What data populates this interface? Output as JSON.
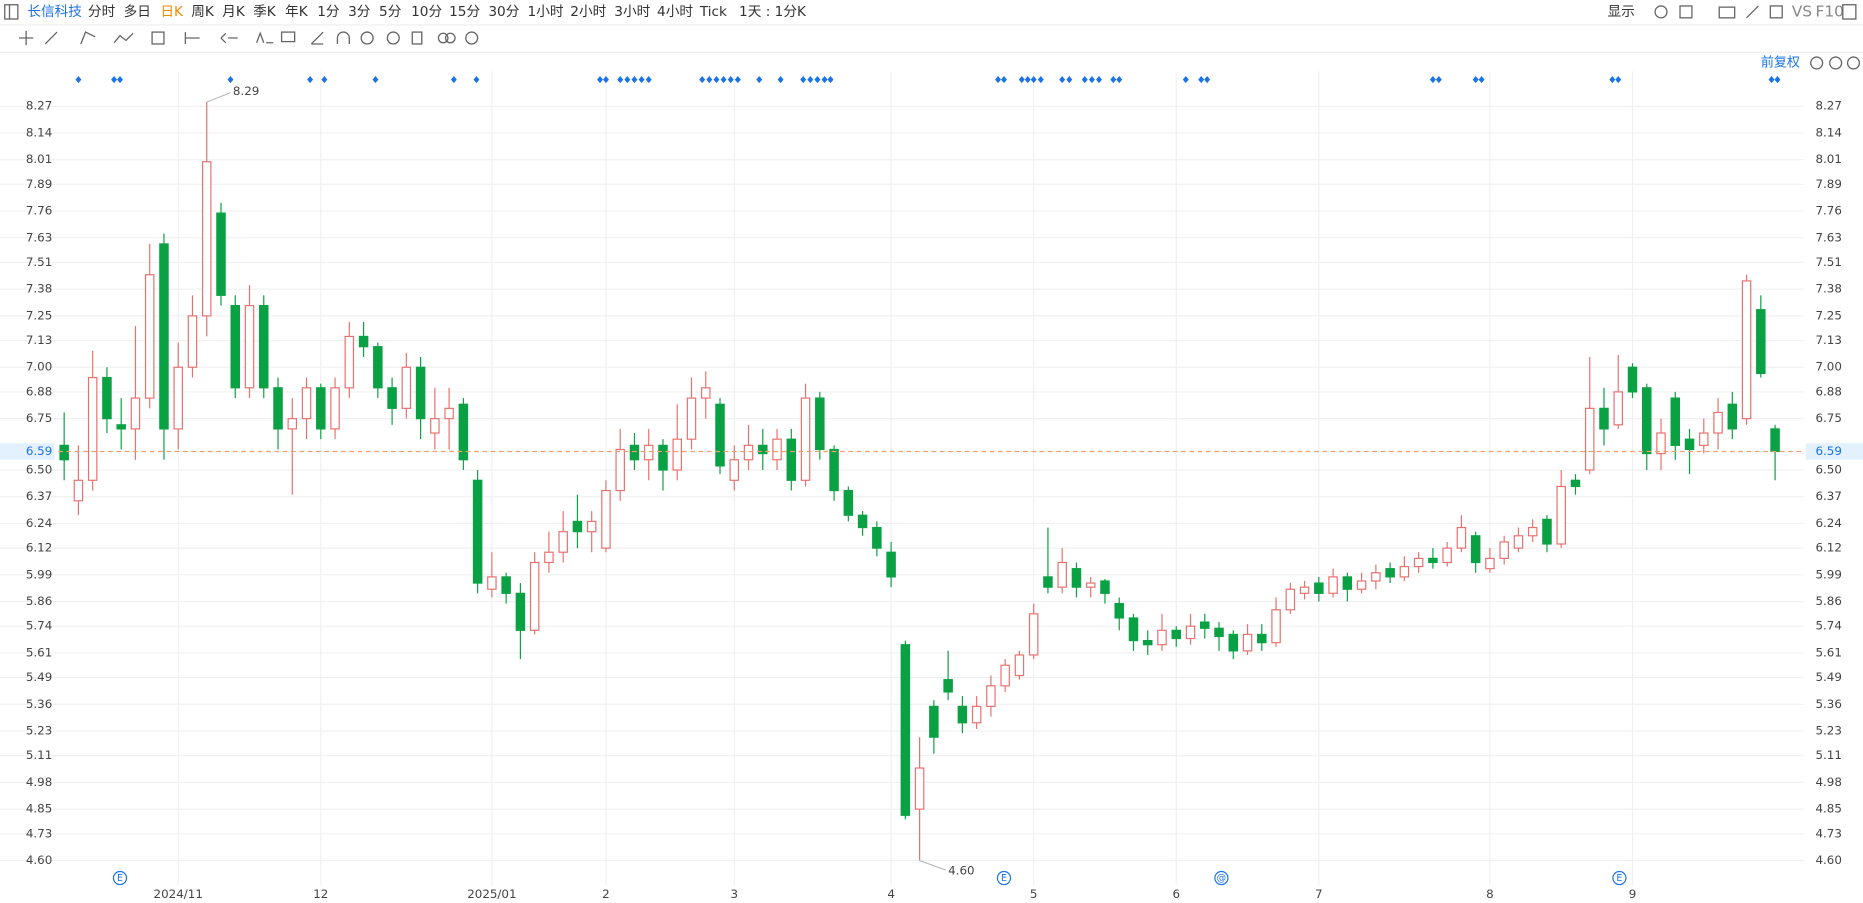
{
  "toolbar": {
    "symbol": "长信科技",
    "periods": [
      "分时",
      "多日",
      "日K",
      "周K",
      "月K",
      "季K",
      "年K",
      "1分",
      "3分",
      "5分",
      "10分",
      "15分",
      "30分",
      "1小时",
      "2小时",
      "3小时",
      "4小时",
      "Tick"
    ],
    "range": "1天 : 1分K",
    "display": "显示",
    "vs": "VS",
    "f10": "F10"
  },
  "chart_data": {
    "type": "candlestick",
    "adjust_label": "前复权",
    "categories": [
      null,
      null,
      null,
      null,
      null,
      null,
      null,
      null,
      "2024/11",
      null,
      null,
      null,
      null,
      null,
      null,
      null,
      null,
      null,
      "12",
      null,
      null,
      null,
      null,
      null,
      null,
      null,
      null,
      null,
      null,
      null,
      "2025/01",
      null,
      null,
      null,
      null,
      null,
      null,
      null,
      "2",
      null,
      null,
      null,
      null,
      null,
      null,
      null,
      null,
      "3",
      null,
      null,
      null,
      null,
      null,
      null,
      null,
      null,
      null,
      null,
      "4",
      null,
      null,
      null,
      null,
      null,
      null,
      null,
      null,
      null,
      "5",
      null,
      null,
      null,
      null,
      null,
      null,
      null,
      null,
      null,
      "6",
      null,
      null,
      null,
      null,
      null,
      null,
      null,
      null,
      null,
      "7",
      null,
      null,
      null,
      null,
      null,
      null,
      null,
      null,
      null,
      null,
      null,
      "8",
      null,
      null,
      null,
      null,
      null,
      null,
      null,
      null,
      null,
      "9",
      null,
      null,
      null,
      null,
      null,
      null,
      null,
      null,
      null,
      null
    ],
    "candles": [
      [
        6.62,
        6.78,
        6.45,
        6.55
      ],
      [
        6.35,
        6.62,
        6.28,
        6.45
      ],
      [
        6.45,
        7.08,
        6.4,
        6.95
      ],
      [
        6.95,
        7.0,
        6.68,
        6.75
      ],
      [
        6.72,
        6.85,
        6.6,
        6.7
      ],
      [
        6.7,
        7.2,
        6.55,
        6.85
      ],
      [
        6.85,
        7.6,
        6.8,
        7.45
      ],
      [
        7.6,
        7.65,
        6.55,
        6.7
      ],
      [
        6.7,
        7.12,
        6.6,
        7.0
      ],
      [
        7.0,
        7.35,
        6.95,
        7.25
      ],
      [
        7.25,
        8.29,
        7.15,
        8.0
      ],
      [
        7.75,
        7.8,
        7.3,
        7.35
      ],
      [
        7.3,
        7.35,
        6.85,
        6.9
      ],
      [
        6.9,
        7.4,
        6.85,
        7.3
      ],
      [
        7.3,
        7.35,
        6.85,
        6.9
      ],
      [
        6.9,
        6.95,
        6.6,
        6.7
      ],
      [
        6.7,
        6.85,
        6.38,
        6.75
      ],
      [
        6.75,
        6.95,
        6.65,
        6.9
      ],
      [
        6.9,
        6.92,
        6.65,
        6.7
      ],
      [
        6.7,
        6.95,
        6.65,
        6.9
      ],
      [
        6.9,
        7.22,
        6.85,
        7.15
      ],
      [
        7.15,
        7.22,
        7.05,
        7.1
      ],
      [
        7.1,
        7.12,
        6.85,
        6.9
      ],
      [
        6.9,
        6.95,
        6.72,
        6.8
      ],
      [
        6.8,
        7.07,
        6.75,
        7.0
      ],
      [
        7.0,
        7.05,
        6.65,
        6.75
      ],
      [
        6.68,
        6.9,
        6.6,
        6.75
      ],
      [
        6.75,
        6.9,
        6.6,
        6.8
      ],
      [
        6.82,
        6.85,
        6.5,
        6.55
      ],
      [
        6.45,
        6.5,
        5.9,
        5.95
      ],
      [
        5.92,
        6.1,
        5.88,
        5.98
      ],
      [
        5.98,
        6.0,
        5.85,
        5.9
      ],
      [
        5.9,
        5.95,
        5.58,
        5.72
      ],
      [
        5.72,
        6.1,
        5.7,
        6.05
      ],
      [
        6.05,
        6.2,
        6.0,
        6.1
      ],
      [
        6.1,
        6.3,
        6.05,
        6.2
      ],
      [
        6.25,
        6.38,
        6.12,
        6.2
      ],
      [
        6.2,
        6.3,
        6.1,
        6.25
      ],
      [
        6.12,
        6.45,
        6.1,
        6.4
      ],
      [
        6.4,
        6.7,
        6.35,
        6.6
      ],
      [
        6.62,
        6.68,
        6.5,
        6.55
      ],
      [
        6.55,
        6.7,
        6.45,
        6.62
      ],
      [
        6.62,
        6.65,
        6.4,
        6.5
      ],
      [
        6.5,
        6.82,
        6.45,
        6.65
      ],
      [
        6.65,
        6.95,
        6.6,
        6.85
      ],
      [
        6.85,
        6.98,
        6.75,
        6.9
      ],
      [
        6.82,
        6.85,
        6.48,
        6.52
      ],
      [
        6.45,
        6.62,
        6.4,
        6.55
      ],
      [
        6.55,
        6.72,
        6.5,
        6.62
      ],
      [
        6.62,
        6.7,
        6.5,
        6.58
      ],
      [
        6.55,
        6.7,
        6.5,
        6.65
      ],
      [
        6.65,
        6.7,
        6.4,
        6.45
      ],
      [
        6.45,
        6.92,
        6.42,
        6.85
      ],
      [
        6.85,
        6.88,
        6.55,
        6.6
      ],
      [
        6.6,
        6.62,
        6.35,
        6.4
      ],
      [
        6.4,
        6.42,
        6.25,
        6.28
      ],
      [
        6.28,
        6.3,
        6.18,
        6.22
      ],
      [
        6.22,
        6.25,
        6.08,
        6.12
      ],
      [
        6.1,
        6.15,
        5.93,
        5.98
      ],
      [
        5.65,
        5.67,
        4.8,
        4.82
      ],
      [
        4.85,
        5.2,
        4.6,
        5.05
      ],
      [
        5.35,
        5.38,
        5.12,
        5.2
      ],
      [
        5.48,
        5.62,
        5.38,
        5.42
      ],
      [
        5.35,
        5.4,
        5.22,
        5.27
      ],
      [
        5.27,
        5.4,
        5.24,
        5.35
      ],
      [
        5.35,
        5.5,
        5.3,
        5.45
      ],
      [
        5.45,
        5.58,
        5.42,
        5.55
      ],
      [
        5.5,
        5.62,
        5.48,
        5.6
      ],
      [
        5.6,
        5.85,
        5.58,
        5.8
      ],
      [
        5.98,
        6.22,
        5.9,
        5.93
      ],
      [
        5.93,
        6.12,
        5.9,
        6.05
      ],
      [
        6.02,
        6.05,
        5.88,
        5.93
      ],
      [
        5.93,
        5.98,
        5.88,
        5.95
      ],
      [
        5.96,
        5.97,
        5.85,
        5.9
      ],
      [
        5.85,
        5.88,
        5.72,
        5.78
      ],
      [
        5.78,
        5.8,
        5.62,
        5.67
      ],
      [
        5.67,
        5.72,
        5.6,
        5.65
      ],
      [
        5.65,
        5.8,
        5.62,
        5.72
      ],
      [
        5.72,
        5.74,
        5.64,
        5.68
      ],
      [
        5.68,
        5.8,
        5.65,
        5.74
      ],
      [
        5.76,
        5.8,
        5.68,
        5.73
      ],
      [
        5.73,
        5.76,
        5.62,
        5.69
      ],
      [
        5.7,
        5.72,
        5.58,
        5.62
      ],
      [
        5.62,
        5.75,
        5.6,
        5.7
      ],
      [
        5.7,
        5.75,
        5.62,
        5.66
      ],
      [
        5.66,
        5.88,
        5.64,
        5.82
      ],
      [
        5.82,
        5.95,
        5.8,
        5.92
      ],
      [
        5.9,
        5.96,
        5.87,
        5.93
      ],
      [
        5.95,
        5.98,
        5.86,
        5.9
      ],
      [
        5.9,
        6.02,
        5.88,
        5.98
      ],
      [
        5.98,
        6.0,
        5.86,
        5.92
      ],
      [
        5.92,
        6.0,
        5.9,
        5.96
      ],
      [
        5.96,
        6.04,
        5.92,
        6.0
      ],
      [
        6.02,
        6.05,
        5.95,
        5.98
      ],
      [
        5.98,
        6.08,
        5.96,
        6.03
      ],
      [
        6.03,
        6.1,
        6.0,
        6.07
      ],
      [
        6.07,
        6.12,
        6.02,
        6.05
      ],
      [
        6.05,
        6.15,
        6.03,
        6.12
      ],
      [
        6.12,
        6.28,
        6.1,
        6.22
      ],
      [
        6.18,
        6.2,
        6.0,
        6.05
      ],
      [
        6.02,
        6.12,
        6.0,
        6.07
      ],
      [
        6.07,
        6.18,
        6.04,
        6.15
      ],
      [
        6.12,
        6.22,
        6.1,
        6.18
      ],
      [
        6.18,
        6.26,
        6.15,
        6.22
      ],
      [
        6.26,
        6.28,
        6.1,
        6.14
      ],
      [
        6.14,
        6.5,
        6.12,
        6.42
      ],
      [
        6.45,
        6.48,
        6.38,
        6.42
      ],
      [
        6.5,
        7.05,
        6.48,
        6.8
      ],
      [
        6.8,
        6.9,
        6.62,
        6.7
      ],
      [
        6.72,
        7.06,
        6.7,
        6.88
      ],
      [
        7.0,
        7.02,
        6.85,
        6.88
      ],
      [
        6.9,
        6.92,
        6.5,
        6.58
      ],
      [
        6.58,
        6.75,
        6.5,
        6.68
      ],
      [
        6.85,
        6.88,
        6.55,
        6.62
      ],
      [
        6.65,
        6.7,
        6.48,
        6.6
      ],
      [
        6.62,
        6.75,
        6.58,
        6.68
      ],
      [
        6.68,
        6.85,
        6.6,
        6.78
      ],
      [
        6.82,
        6.88,
        6.65,
        6.7
      ],
      [
        6.75,
        7.45,
        6.72,
        7.42
      ],
      [
        7.28,
        7.35,
        6.95,
        6.97
      ],
      [
        6.7,
        6.72,
        6.45,
        6.59
      ]
    ],
    "up_color": "#e8716f",
    "down_color": "#0aa145",
    "ylim": [
      4.48,
      8.44
    ],
    "yticks": [
      {
        "value": 4.6,
        "label": "4.60"
      },
      4.73,
      4.85,
      4.98,
      5.11,
      5.23,
      5.36,
      5.49,
      5.61,
      5.74,
      5.86,
      5.99,
      6.12,
      6.24,
      6.37,
      {
        "value": 6.5,
        "label": "6.50"
      },
      6.75,
      6.88,
      {
        "value": 7.0,
        "label": "7.00"
      },
      7.13,
      7.25,
      7.38,
      7.51,
      7.63,
      7.76,
      7.89,
      8.01,
      8.14,
      8.27
    ],
    "last_price": 6.59,
    "last_color": "#f0a070",
    "high_label": "8.29",
    "low_label": "4.60",
    "event_markers": [
      "E",
      "E",
      "@",
      "E"
    ],
    "grid": true
  }
}
